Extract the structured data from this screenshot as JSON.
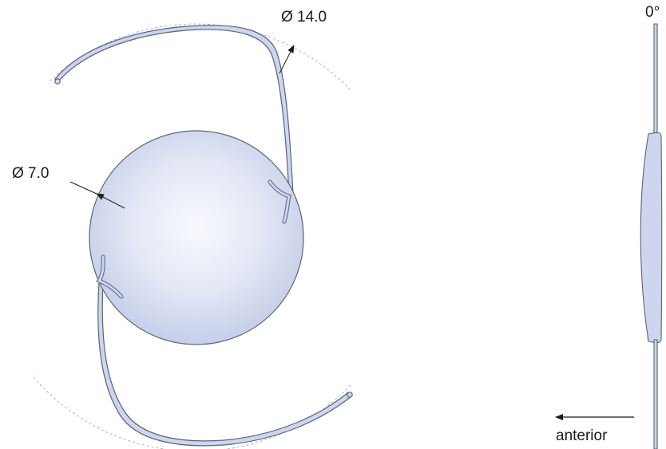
{
  "labels": {
    "overall_diameter": "Ø 14.0",
    "optic_diameter": "Ø 7.0",
    "angulation": "0°",
    "direction": "anterior"
  },
  "colors": {
    "optic_center": "#f6f8fd",
    "optic_edge": "#c7d0ea",
    "haptic_fill": "#cdd6ee",
    "outline": "#5a6378",
    "dashed_circle": "#9aa2b4",
    "text": "#1a1a1a"
  }
}
